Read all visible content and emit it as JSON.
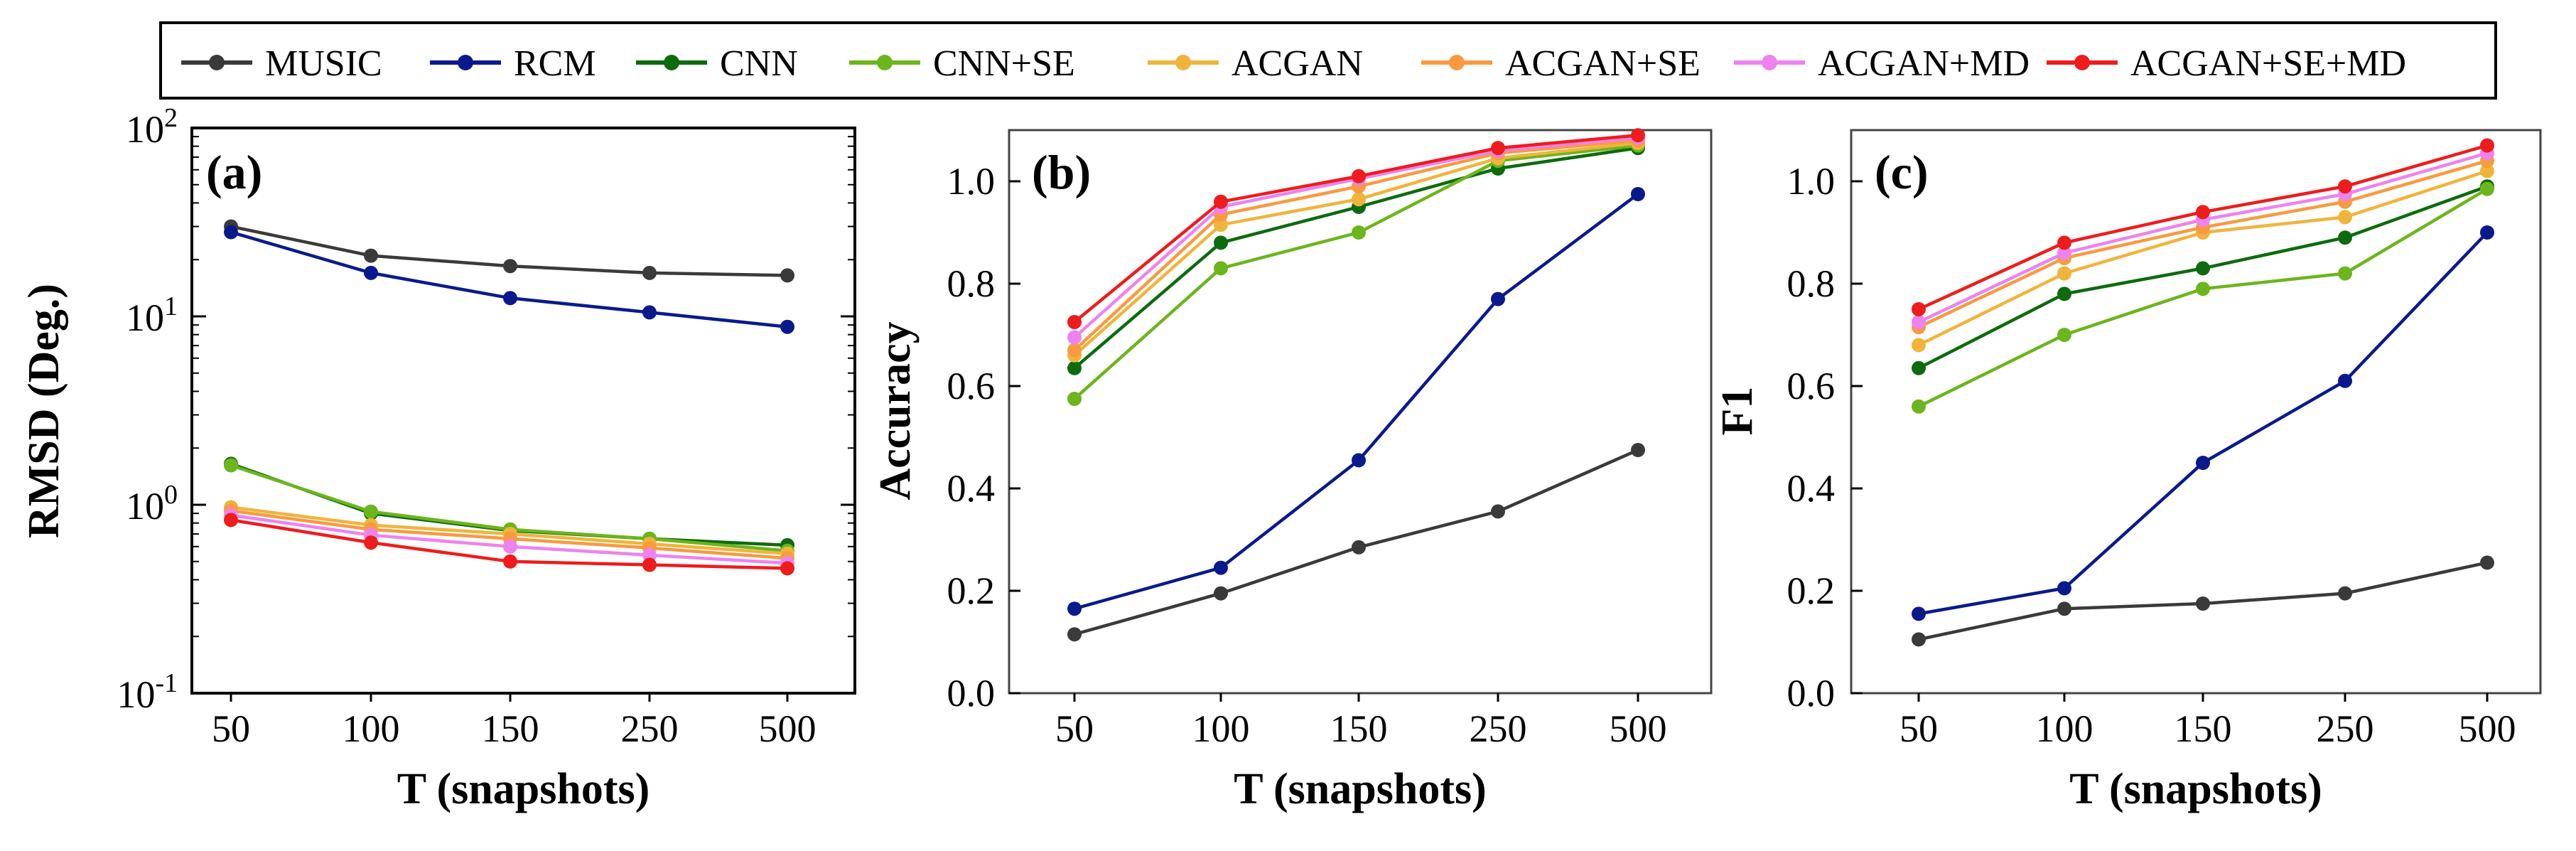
{
  "legend": {
    "position": "top",
    "entries": [
      {
        "name": "MUSIC",
        "color": "#3a3a3a"
      },
      {
        "name": "RCM",
        "color": "#0a1a8c"
      },
      {
        "name": "CNN",
        "color": "#0d6b0d"
      },
      {
        "name": "CNN+SE",
        "color": "#6cb51c"
      },
      {
        "name": "ACGAN",
        "color": "#f0b43c"
      },
      {
        "name": "ACGAN+SE",
        "color": "#f89a40"
      },
      {
        "name": "ACGAN+MD",
        "color": "#ee82ee"
      },
      {
        "name": "ACGAN+SE+MD",
        "color": "#ee1c1c"
      }
    ]
  },
  "chart_data": [
    {
      "type": "line",
      "panel_label": "(a)",
      "xlabel": "T (snapshots)",
      "ylabel": "RMSD (Deg.)",
      "yscale": "log",
      "ylim": [
        0.1,
        100
      ],
      "yticks": [
        {
          "value": 0.1,
          "base": "10",
          "exp": "-1"
        },
        {
          "value": 1,
          "base": "10",
          "exp": "0"
        },
        {
          "value": 10,
          "base": "10",
          "exp": "1"
        },
        {
          "value": 100,
          "base": "10",
          "exp": "2"
        }
      ],
      "categories": [
        "50",
        "100",
        "150",
        "250",
        "500"
      ],
      "series": [
        {
          "name": "MUSIC",
          "color": "#3a3a3a",
          "values": [
            30,
            21,
            18.5,
            17,
            16.5
          ]
        },
        {
          "name": "RCM",
          "color": "#0a1a8c",
          "values": [
            28,
            17,
            12.5,
            10.5,
            8.8
          ]
        },
        {
          "name": "CNN",
          "color": "#0d6b0d",
          "values": [
            1.65,
            0.9,
            0.73,
            0.66,
            0.61
          ]
        },
        {
          "name": "CNN+SE",
          "color": "#6cb51c",
          "values": [
            1.62,
            0.92,
            0.74,
            0.66,
            0.57
          ]
        },
        {
          "name": "ACGAN",
          "color": "#f0b43c",
          "values": [
            0.97,
            0.78,
            0.7,
            0.62,
            0.55
          ]
        },
        {
          "name": "ACGAN+SE",
          "color": "#f89a40",
          "values": [
            0.93,
            0.74,
            0.66,
            0.59,
            0.52
          ]
        },
        {
          "name": "ACGAN+MD",
          "color": "#ee82ee",
          "values": [
            0.88,
            0.69,
            0.6,
            0.54,
            0.49
          ]
        },
        {
          "name": "ACGAN+SE+MD",
          "color": "#ee1c1c",
          "values": [
            0.83,
            0.63,
            0.5,
            0.48,
            0.46
          ]
        }
      ]
    },
    {
      "type": "line",
      "panel_label": "(b)",
      "xlabel": "T (snapshots)",
      "ylabel": "Accuracy",
      "yscale": "linear",
      "ylim": [
        0.0,
        1.1
      ],
      "yticks": [
        {
          "value": 0.0,
          "label": "0.0"
        },
        {
          "value": 0.2,
          "label": "0.2"
        },
        {
          "value": 0.4,
          "label": "0.4"
        },
        {
          "value": 0.6,
          "label": "0.6"
        },
        {
          "value": 0.8,
          "label": "0.8"
        },
        {
          "value": 1.0,
          "label": "1.0"
        }
      ],
      "categories": [
        "50",
        "100",
        "150",
        "250",
        "500"
      ],
      "series": [
        {
          "name": "MUSIC",
          "color": "#3a3a3a",
          "values": [
            0.115,
            0.195,
            0.285,
            0.355,
            0.475
          ]
        },
        {
          "name": "RCM",
          "color": "#0a1a8c",
          "values": [
            0.165,
            0.245,
            0.455,
            0.77,
            0.975
          ]
        },
        {
          "name": "CNN",
          "color": "#0d6b0d",
          "values": [
            0.635,
            0.88,
            0.95,
            1.025,
            1.065
          ]
        },
        {
          "name": "CNN+SE",
          "color": "#6cb51c",
          "values": [
            0.575,
            0.83,
            0.9,
            1.04,
            1.07
          ]
        },
        {
          "name": "ACGAN",
          "color": "#f0b43c",
          "values": [
            0.66,
            0.915,
            0.965,
            1.045,
            1.075
          ]
        },
        {
          "name": "ACGAN+SE",
          "color": "#f89a40",
          "values": [
            0.67,
            0.935,
            0.99,
            1.055,
            1.08
          ]
        },
        {
          "name": "ACGAN+MD",
          "color": "#ee82ee",
          "values": [
            0.695,
            0.95,
            1.005,
            1.06,
            1.085
          ]
        },
        {
          "name": "ACGAN+SE+MD",
          "color": "#ee1c1c",
          "values": [
            0.725,
            0.96,
            1.01,
            1.065,
            1.09
          ]
        }
      ]
    },
    {
      "type": "line",
      "panel_label": "(c)",
      "xlabel": "T (snapshots)",
      "ylabel": "F1",
      "yscale": "linear",
      "ylim": [
        0.0,
        1.1
      ],
      "yticks": [
        {
          "value": 0.0,
          "label": "0.0"
        },
        {
          "value": 0.2,
          "label": "0.2"
        },
        {
          "value": 0.4,
          "label": "0.4"
        },
        {
          "value": 0.6,
          "label": "0.6"
        },
        {
          "value": 0.8,
          "label": "0.8"
        },
        {
          "value": 1.0,
          "label": "1.0"
        }
      ],
      "categories": [
        "50",
        "100",
        "150",
        "250",
        "500"
      ],
      "series": [
        {
          "name": "MUSIC",
          "color": "#3a3a3a",
          "values": [
            0.105,
            0.165,
            0.175,
            0.195,
            0.255
          ]
        },
        {
          "name": "RCM",
          "color": "#0a1a8c",
          "values": [
            0.155,
            0.205,
            0.45,
            0.61,
            0.9
          ]
        },
        {
          "name": "CNN",
          "color": "#0d6b0d",
          "values": [
            0.635,
            0.78,
            0.83,
            0.89,
            0.99
          ]
        },
        {
          "name": "CNN+SE",
          "color": "#6cb51c",
          "values": [
            0.56,
            0.7,
            0.79,
            0.82,
            0.985
          ]
        },
        {
          "name": "ACGAN",
          "color": "#f0b43c",
          "values": [
            0.68,
            0.82,
            0.9,
            0.93,
            1.02
          ]
        },
        {
          "name": "ACGAN+SE",
          "color": "#f89a40",
          "values": [
            0.715,
            0.85,
            0.91,
            0.96,
            1.04
          ]
        },
        {
          "name": "ACGAN+MD",
          "color": "#ee82ee",
          "values": [
            0.725,
            0.86,
            0.925,
            0.975,
            1.055
          ]
        },
        {
          "name": "ACGAN+SE+MD",
          "color": "#ee1c1c",
          "values": [
            0.75,
            0.88,
            0.94,
            0.99,
            1.07
          ]
        }
      ]
    }
  ]
}
